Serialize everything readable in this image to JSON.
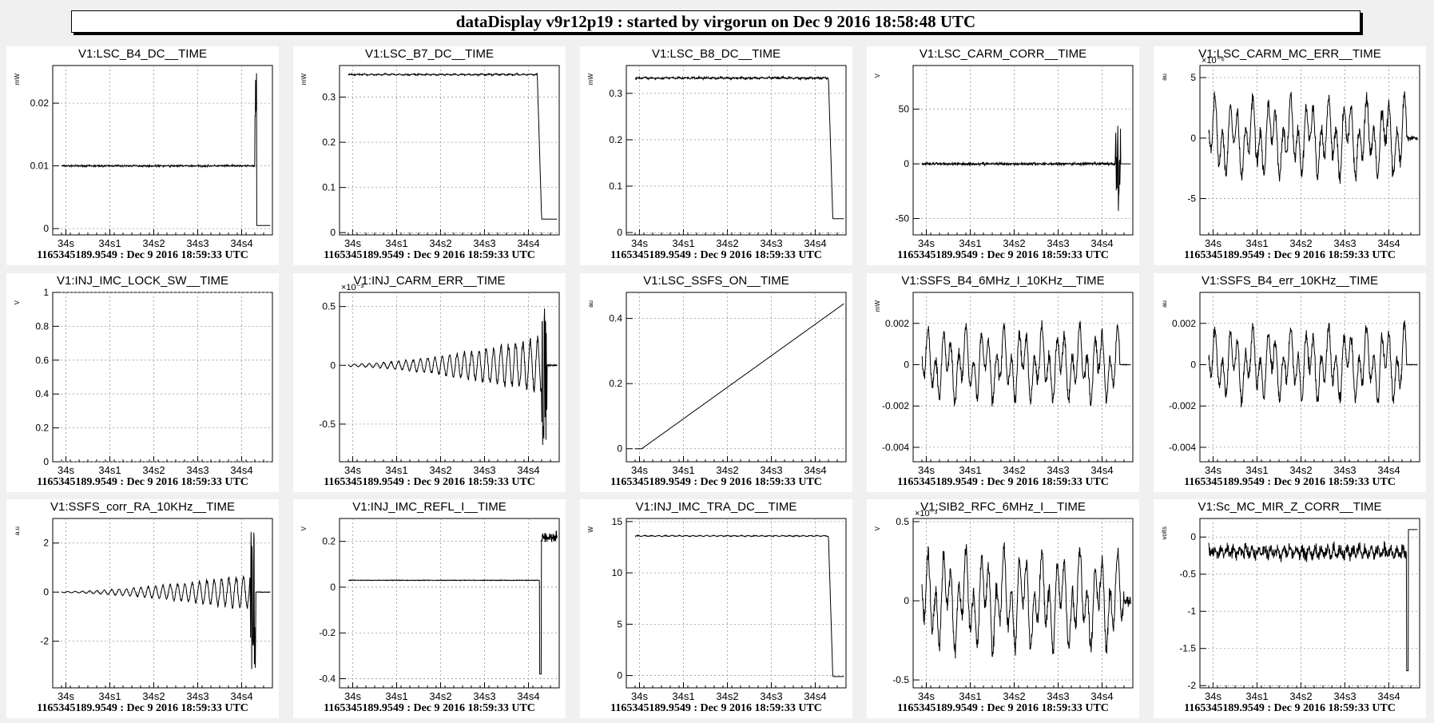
{
  "header": {
    "title": "dataDisplay v9r12p19 : started by virgorun on Dec  9 2016 18:58:48 UTC"
  },
  "common": {
    "footer": "1165345189.9549 : Dec  9 2016 18:59:33 UTC",
    "x_ticks": [
      "34s",
      "34s1",
      "34s2",
      "34s3",
      "34s4"
    ]
  },
  "chart_data": [
    {
      "type": "line",
      "title": "V1:LSC_B4_DC__TIME",
      "ylabel": "mW",
      "ylim": [
        -0.001,
        0.026
      ],
      "yticks": [
        0,
        0.01,
        0.02
      ],
      "ytick_labels": [
        "0",
        "0.01",
        "0.02"
      ],
      "xlim": [
        33.97,
        34.47
      ],
      "xticks": [
        34.0,
        34.1,
        34.2,
        34.3,
        34.4
      ],
      "xtick_labels": [
        "34s",
        "34s1",
        "34s2",
        "34s3",
        "34s4"
      ],
      "grid": true,
      "exponent": "",
      "shape": "flat_spike_drop",
      "params": {
        "level": 0.01,
        "noise": 0.0002,
        "drop_at": 34.43,
        "end_level": 0.0005,
        "spike": 0.025
      }
    },
    {
      "type": "line",
      "title": "V1:LSC_B7_DC__TIME",
      "ylabel": "mW",
      "ylim": [
        -0.005,
        0.37
      ],
      "yticks": [
        0,
        0.1,
        0.2,
        0.3
      ],
      "ytick_labels": [
        "0",
        "0.1",
        "0.2",
        "0.3"
      ],
      "xlim": [
        33.97,
        34.47
      ],
      "xticks": [
        34.0,
        34.1,
        34.2,
        34.3,
        34.4
      ],
      "xtick_labels": [
        "34s",
        "34s1",
        "34s2",
        "34s3",
        "34s4"
      ],
      "grid": true,
      "exponent": "",
      "shape": "flat_drop",
      "params": {
        "level": 0.35,
        "noise": 0.002,
        "drop_at": 34.42,
        "end_level": 0.03
      }
    },
    {
      "type": "line",
      "title": "V1:LSC_B8_DC__TIME",
      "ylabel": "mW",
      "ylim": [
        -0.005,
        0.36
      ],
      "yticks": [
        0,
        0.1,
        0.2,
        0.3
      ],
      "ytick_labels": [
        "0",
        "0.1",
        "0.2",
        "0.3"
      ],
      "xlim": [
        33.97,
        34.47
      ],
      "xticks": [
        34.0,
        34.1,
        34.2,
        34.3,
        34.4
      ],
      "xtick_labels": [
        "34s",
        "34s1",
        "34s2",
        "34s3",
        "34s4"
      ],
      "grid": true,
      "exponent": "",
      "shape": "flat_drop",
      "params": {
        "level": 0.333,
        "noise": 0.003,
        "drop_at": 34.43,
        "end_level": 0.03
      }
    },
    {
      "type": "line",
      "title": "V1:LSC_CARM_CORR__TIME",
      "ylabel": "V",
      "ylim": [
        -65,
        90
      ],
      "yticks": [
        -50,
        0,
        50
      ],
      "ytick_labels": [
        "-50",
        "0",
        "50"
      ],
      "xlim": [
        33.97,
        34.47
      ],
      "xticks": [
        34.0,
        34.1,
        34.2,
        34.3,
        34.4
      ],
      "xtick_labels": [
        "34s",
        "34s1",
        "34s2",
        "34s3",
        "34s4"
      ],
      "grid": true,
      "exponent": "",
      "shape": "noise_burst",
      "params": {
        "level": 0,
        "noise": 2,
        "burst_at": 34.43,
        "burst_amp": 70
      }
    },
    {
      "type": "line",
      "title": "V1:LSC_CARM_MC_ERR__TIME",
      "ylabel": "au",
      "ylim": [
        -8,
        6
      ],
      "yticks": [
        -5,
        0,
        5
      ],
      "ytick_labels": [
        "-5",
        "0",
        "5"
      ],
      "xlim": [
        33.97,
        34.47
      ],
      "xticks": [
        34.0,
        34.1,
        34.2,
        34.3,
        34.4
      ],
      "xtick_labels": [
        "34s",
        "34s1",
        "34s2",
        "34s3",
        "34s4"
      ],
      "grid": true,
      "exponent": "×10⁻⁶",
      "shape": "oscillation",
      "params": {
        "amp": 3.5,
        "growth": 1.0,
        "after": 34.44,
        "after_amp": 0.3
      }
    },
    {
      "type": "line",
      "title": "V1:INJ_IMC_LOCK_SW__TIME",
      "ylabel": "V",
      "ylim": [
        0,
        1
      ],
      "yticks": [
        0,
        0.2,
        0.4,
        0.6,
        0.8,
        1
      ],
      "ytick_labels": [
        "0",
        "0.2",
        "0.4",
        "0.6",
        "0.8",
        "1"
      ],
      "xlim": [
        33.97,
        34.47
      ],
      "xticks": [
        34.0,
        34.1,
        34.2,
        34.3,
        34.4
      ],
      "xtick_labels": [
        "34s",
        "34s1",
        "34s2",
        "34s3",
        "34s4"
      ],
      "grid": true,
      "exponent": "",
      "shape": "empty",
      "params": {}
    },
    {
      "type": "line",
      "title": "V1:INJ_CARM_ERR__TIME",
      "ylabel": "",
      "ylim": [
        -0.82,
        0.62
      ],
      "yticks": [
        -0.5,
        0,
        0.5
      ],
      "ytick_labels": [
        "-0.5",
        "0",
        "0.5"
      ],
      "xlim": [
        33.97,
        34.47
      ],
      "xticks": [
        34.0,
        34.1,
        34.2,
        34.3,
        34.4
      ],
      "xtick_labels": [
        "34s",
        "34s1",
        "34s2",
        "34s3",
        "34s4"
      ],
      "grid": true,
      "exponent": "×10⁻³",
      "shape": "growing_osc",
      "params": {
        "amp_start": 0.01,
        "amp_end": 0.25,
        "spike_at": 34.43,
        "spike_min": -0.7,
        "spike_max": 0.5
      }
    },
    {
      "type": "line",
      "title": "V1:LSC_SSFS_ON__TIME",
      "ylabel": "au",
      "ylim": [
        -0.04,
        0.48
      ],
      "yticks": [
        0,
        0.2,
        0.4
      ],
      "ytick_labels": [
        "0",
        "0.2",
        "0.4"
      ],
      "xlim": [
        33.97,
        34.47
      ],
      "xticks": [
        34.0,
        34.1,
        34.2,
        34.3,
        34.4
      ],
      "xtick_labels": [
        "34s",
        "34s1",
        "34s2",
        "34s3",
        "34s4"
      ],
      "grid": true,
      "exponent": "",
      "shape": "ramp",
      "params": {
        "start": 34.005,
        "end": 34.47,
        "end_value": 0.45
      }
    },
    {
      "type": "line",
      "title": "V1:SSFS_B4_6MHz_I_10KHz__TIME",
      "ylabel": "mW",
      "ylim": [
        -0.0047,
        0.0035
      ],
      "yticks": [
        -0.004,
        -0.002,
        0,
        0.002
      ],
      "ytick_labels": [
        "-0.004",
        "-0.002",
        "0",
        "0.002"
      ],
      "xlim": [
        33.97,
        34.47
      ],
      "xticks": [
        34.0,
        34.1,
        34.2,
        34.3,
        34.4
      ],
      "xtick_labels": [
        "34s",
        "34s1",
        "34s2",
        "34s3",
        "34s4"
      ],
      "grid": true,
      "exponent": "",
      "shape": "oscillation",
      "params": {
        "amp": 0.0018,
        "growth": 1.1,
        "after": 34.44,
        "after_amp": 2e-05
      }
    },
    {
      "type": "line",
      "title": "V1:SSFS_B4_err_10KHz__TIME",
      "ylabel": "au",
      "ylim": [
        -0.0047,
        0.0035
      ],
      "yticks": [
        -0.004,
        -0.002,
        0,
        0.002
      ],
      "ytick_labels": [
        "-0.004",
        "-0.002",
        "0",
        "0.002"
      ],
      "xlim": [
        33.97,
        34.47
      ],
      "xticks": [
        34.0,
        34.1,
        34.2,
        34.3,
        34.4
      ],
      "xtick_labels": [
        "34s",
        "34s1",
        "34s2",
        "34s3",
        "34s4"
      ],
      "grid": true,
      "exponent": "",
      "shape": "oscillation",
      "params": {
        "amp": 0.0018,
        "growth": 1.1,
        "after": 34.44,
        "after_amp": 2e-05
      }
    },
    {
      "type": "line",
      "title": "V1:SSFS_corr_RA_10KHz__TIME",
      "ylabel": "a.u",
      "ylim": [
        -3.9,
        3.0
      ],
      "yticks": [
        -2,
        0,
        2
      ],
      "ytick_labels": [
        "-2",
        "0",
        "2"
      ],
      "xlim": [
        33.97,
        34.47
      ],
      "xticks": [
        34.0,
        34.1,
        34.2,
        34.3,
        34.4
      ],
      "xtick_labels": [
        "34s",
        "34s1",
        "34s2",
        "34s3",
        "34s4"
      ],
      "grid": true,
      "exponent": "",
      "shape": "growing_osc",
      "params": {
        "amp_start": 0.02,
        "amp_end": 0.8,
        "spike_at": 34.42,
        "spike_min": -3.3,
        "spike_max": 2.5
      }
    },
    {
      "type": "line",
      "title": "V1:INJ_IMC_REFL_I__TIME",
      "ylabel": "V",
      "ylim": [
        -0.44,
        0.3
      ],
      "yticks": [
        -0.4,
        -0.2,
        0,
        0.2
      ],
      "ytick_labels": [
        "-0.4",
        "-0.2",
        "0",
        "0.2"
      ],
      "xlim": [
        33.97,
        34.47
      ],
      "xticks": [
        34.0,
        34.1,
        34.2,
        34.3,
        34.4
      ],
      "xtick_labels": [
        "34s",
        "34s1",
        "34s2",
        "34s3",
        "34s4"
      ],
      "grid": true,
      "exponent": "",
      "shape": "flat_spike_end",
      "params": {
        "level": 0.03,
        "noise": 0.002,
        "at": 34.425,
        "min": -0.38,
        "end_level": 0.22
      }
    },
    {
      "type": "line",
      "title": "V1:INJ_IMC_TRA_DC__TIME",
      "ylabel": "W",
      "ylim": [
        -1.2,
        15.3
      ],
      "yticks": [
        0,
        5,
        10,
        15
      ],
      "ytick_labels": [
        "0",
        "5",
        "10",
        "15"
      ],
      "xlim": [
        33.97,
        34.47
      ],
      "xticks": [
        34.0,
        34.1,
        34.2,
        34.3,
        34.4
      ],
      "xtick_labels": [
        "34s",
        "34s1",
        "34s2",
        "34s3",
        "34s4"
      ],
      "grid": true,
      "exponent": "",
      "shape": "flat_drop",
      "params": {
        "level": 13.6,
        "noise": 0.05,
        "drop_at": 34.43,
        "end_level": -0.1
      }
    },
    {
      "type": "line",
      "title": "V1:SIB2_RFC_6MHz_I__TIME",
      "ylabel": "V",
      "ylim": [
        -0.55,
        0.52
      ],
      "yticks": [
        -0.5,
        0,
        0.5
      ],
      "ytick_labels": [
        "-0.5",
        "0",
        "0.5"
      ],
      "xlim": [
        33.97,
        34.47
      ],
      "xticks": [
        34.0,
        34.1,
        34.2,
        34.3,
        34.4
      ],
      "xtick_labels": [
        "34s",
        "34s1",
        "34s2",
        "34s3",
        "34s4"
      ],
      "grid": true,
      "exponent": "×10⁻³",
      "shape": "oscillation",
      "params": {
        "amp": 0.33,
        "growth": 1.0,
        "after": 34.45,
        "after_amp": 0.05
      }
    },
    {
      "type": "line",
      "title": "V1:Sc_MC_MIR_Z_CORR__TIME",
      "ylabel": "volts",
      "ylim": [
        -2.03,
        0.25
      ],
      "yticks": [
        -2,
        -1.5,
        -1,
        -0.5,
        0
      ],
      "ytick_labels": [
        "-2",
        "-1.5",
        "-1",
        "-0.5",
        "0"
      ],
      "xlim": [
        33.97,
        34.47
      ],
      "xticks": [
        34.0,
        34.1,
        34.2,
        34.3,
        34.4
      ],
      "xtick_labels": [
        "34s",
        "34s1",
        "34s2",
        "34s3",
        "34s4"
      ],
      "grid": true,
      "exponent": "",
      "shape": "noise_band",
      "params": {
        "level": -0.2,
        "noise": 0.12,
        "end_at": 34.44,
        "end_min": -1.8
      }
    }
  ]
}
